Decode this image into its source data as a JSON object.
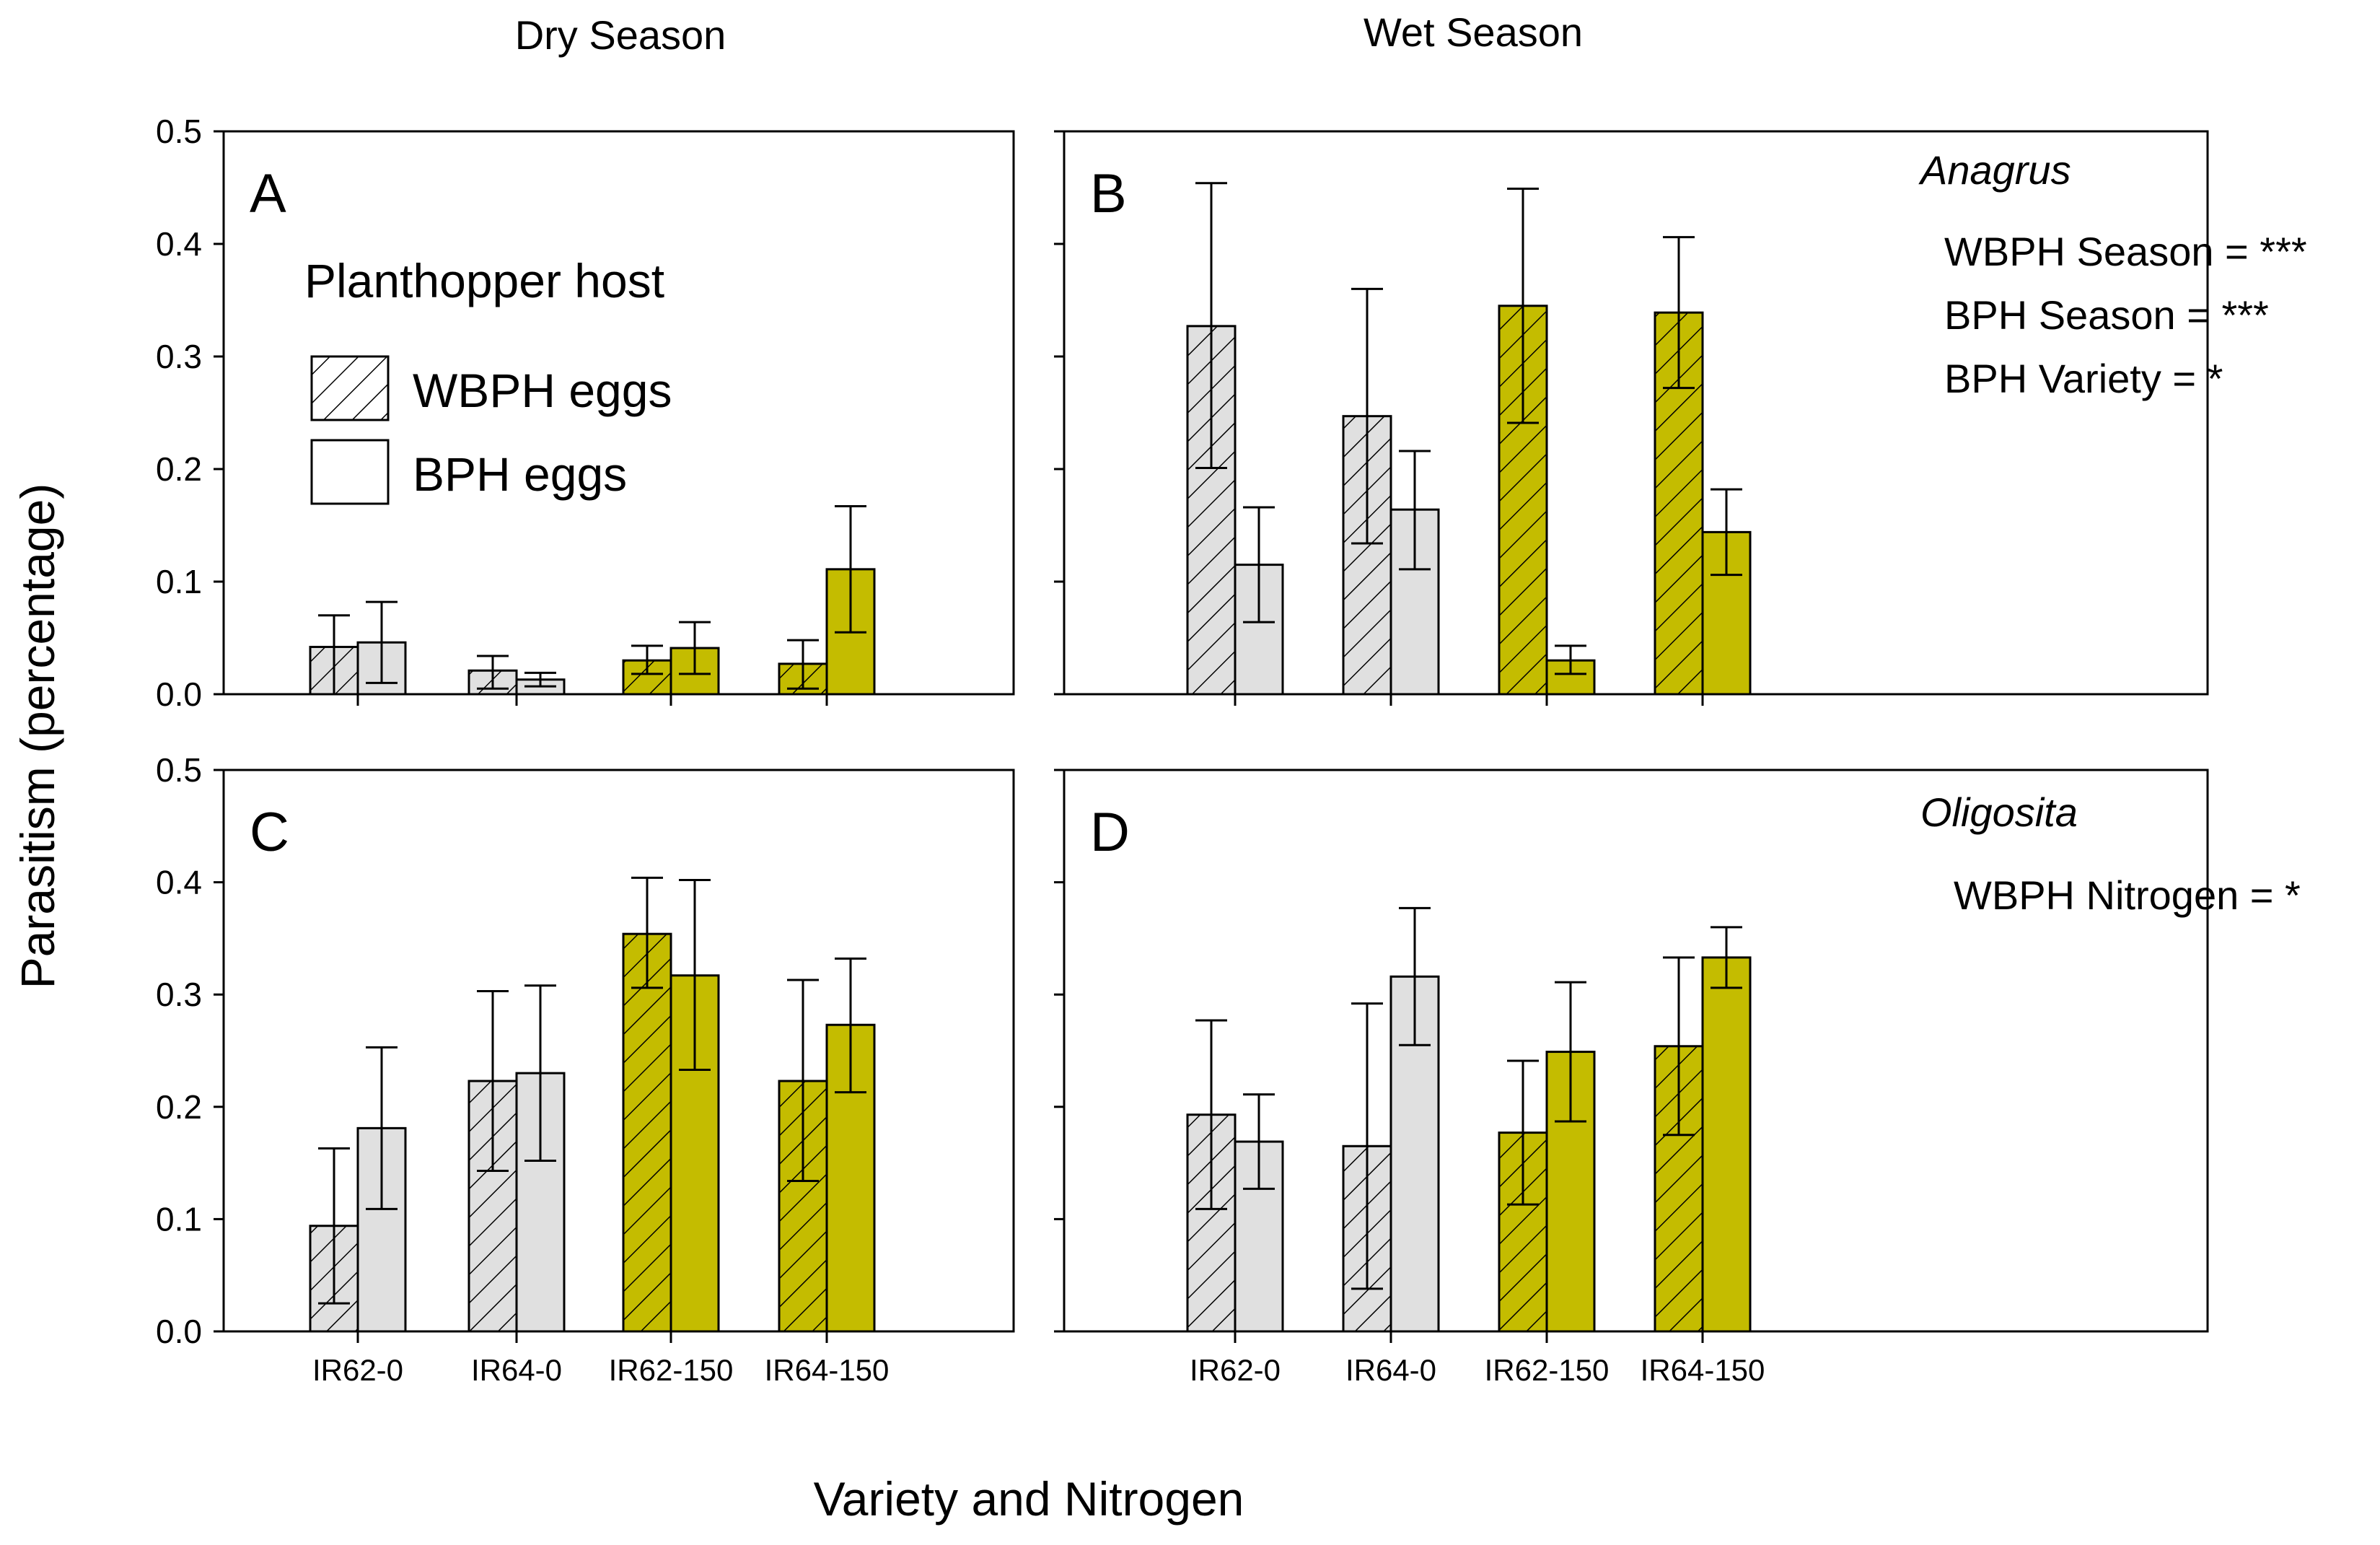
{
  "figure": {
    "col_titles": [
      "Dry Season",
      "Wet Season"
    ],
    "ylabel": "Parasitism (percentage)",
    "xlabel": "Variety and Nitrogen",
    "y_tick_labels": [
      "0.0",
      "0.1",
      "0.2",
      "0.3",
      "0.4",
      "0.5"
    ],
    "legend": {
      "title": "Planthopper host",
      "items": [
        "WBPH eggs",
        "BPH eggs"
      ]
    },
    "annotations": [
      {
        "genus": "Anagrus",
        "lines": [
          "WBPH Season = ***",
          "BPH Season = ***",
          "BPH Variety = *"
        ]
      },
      {
        "genus": "Oligosita",
        "lines": [
          "WBPH Nitrogen = *"
        ]
      }
    ],
    "colors": {
      "gray_fill": "#e0e0e0",
      "olive_fill": "#c4bc00",
      "stroke": "#000000"
    }
  },
  "chart_data": [
    {
      "type": "bar",
      "panel": "A",
      "parasitoid": "Anagrus",
      "season": "Dry Season",
      "categories": [
        "IR62-0",
        "IR64-0",
        "IR62-150",
        "IR64-150"
      ],
      "ylim": [
        0,
        0.5
      ],
      "series": [
        {
          "name": "WBPH eggs",
          "values": [
            0.042,
            0.021,
            0.03,
            0.027
          ],
          "err_low": [
            0.0,
            0.005,
            0.018,
            0.005
          ],
          "err_high": [
            0.07,
            0.034,
            0.043,
            0.048
          ]
        },
        {
          "name": "BPH eggs",
          "values": [
            0.046,
            0.013,
            0.041,
            0.111
          ],
          "err_low": [
            0.01,
            0.007,
            0.018,
            0.055
          ],
          "err_high": [
            0.082,
            0.019,
            0.064,
            0.167
          ]
        }
      ]
    },
    {
      "type": "bar",
      "panel": "B",
      "parasitoid": "Anagrus",
      "season": "Wet Season",
      "categories": [
        "IR62-0",
        "IR64-0",
        "IR62-150",
        "IR64-150"
      ],
      "ylim": [
        0,
        0.5
      ],
      "series": [
        {
          "name": "WBPH eggs",
          "values": [
            0.327,
            0.247,
            0.345,
            0.339
          ],
          "err_low": [
            0.201,
            0.134,
            0.241,
            0.272
          ],
          "err_high": [
            0.454,
            0.36,
            0.449,
            0.406
          ]
        },
        {
          "name": "BPH eggs",
          "values": [
            0.115,
            0.164,
            0.03,
            0.144
          ],
          "err_low": [
            0.064,
            0.111,
            0.018,
            0.106
          ],
          "err_high": [
            0.166,
            0.216,
            0.043,
            0.182
          ]
        }
      ]
    },
    {
      "type": "bar",
      "panel": "C",
      "parasitoid": "Oligosita",
      "season": "Dry Season",
      "categories": [
        "IR62-0",
        "IR64-0",
        "IR62-150",
        "IR64-150"
      ],
      "ylim": [
        0,
        0.5
      ],
      "series": [
        {
          "name": "WBPH eggs",
          "values": [
            0.094,
            0.223,
            0.354,
            0.223
          ],
          "err_low": [
            0.025,
            0.143,
            0.306,
            0.134
          ],
          "err_high": [
            0.163,
            0.303,
            0.404,
            0.313
          ]
        },
        {
          "name": "BPH eggs",
          "values": [
            0.181,
            0.23,
            0.317,
            0.273
          ],
          "err_low": [
            0.109,
            0.152,
            0.233,
            0.213
          ],
          "err_high": [
            0.253,
            0.308,
            0.402,
            0.332
          ]
        }
      ]
    },
    {
      "type": "bar",
      "panel": "D",
      "parasitoid": "Oligosita",
      "season": "Wet Season",
      "categories": [
        "IR62-0",
        "IR64-0",
        "IR62-150",
        "IR64-150"
      ],
      "ylim": [
        0,
        0.5
      ],
      "series": [
        {
          "name": "WBPH eggs",
          "values": [
            0.193,
            0.165,
            0.177,
            0.254
          ],
          "err_low": [
            0.109,
            0.038,
            0.113,
            0.175
          ],
          "err_high": [
            0.277,
            0.292,
            0.241,
            0.333
          ]
        },
        {
          "name": "BPH eggs",
          "values": [
            0.169,
            0.316,
            0.249,
            0.333
          ],
          "err_low": [
            0.127,
            0.255,
            0.187,
            0.306
          ],
          "err_high": [
            0.211,
            0.377,
            0.311,
            0.36
          ]
        }
      ]
    }
  ]
}
